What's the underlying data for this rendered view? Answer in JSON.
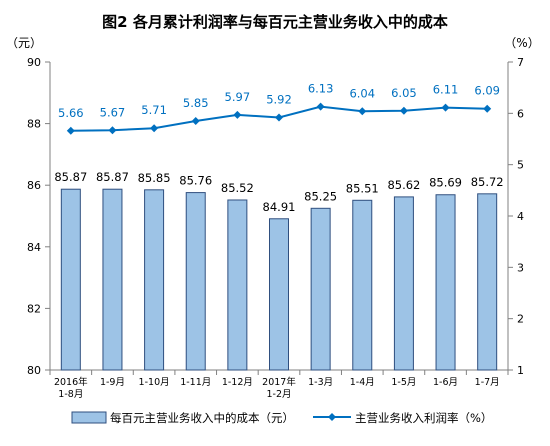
{
  "title": "图2  各月累计利润率与每百元主营业务收入中的成本",
  "left_unit": "（元）",
  "right_unit": "（%）",
  "colors": {
    "bar_fill": "#9DC3E6",
    "bar_stroke": "#2F4F7F",
    "line": "#0070C0",
    "line_label": "#0070C0"
  },
  "chart_data": {
    "type": "bar+line",
    "categories": [
      [
        "2016年",
        "1-8月"
      ],
      [
        "1-9月"
      ],
      [
        "1-10月"
      ],
      [
        "1-11月"
      ],
      [
        "1-12月"
      ],
      [
        "2017年",
        "1-2月"
      ],
      [
        "1-3月"
      ],
      [
        "1-4月"
      ],
      [
        "1-5月"
      ],
      [
        "1-6月"
      ],
      [
        "1-7月"
      ]
    ],
    "series": [
      {
        "name": "每百元主营业务收入中的成本（元）",
        "type": "bar",
        "axis": "left",
        "values": [
          85.87,
          85.87,
          85.85,
          85.76,
          85.52,
          84.91,
          85.25,
          85.51,
          85.62,
          85.69,
          85.72
        ],
        "labels": [
          "85.87",
          "85.87",
          "85.85",
          "85.76",
          "85.52",
          "84.91",
          "85.25",
          "85.51",
          "85.62",
          "85.69",
          "85.72"
        ]
      },
      {
        "name": "主营业务收入利润率（%）",
        "type": "line",
        "axis": "right",
        "values": [
          5.66,
          5.67,
          5.71,
          5.85,
          5.97,
          5.92,
          6.13,
          6.04,
          6.05,
          6.11,
          6.09
        ],
        "labels": [
          "5.66",
          "5.67",
          "5.71",
          "5.85",
          "5.97",
          "5.92",
          "6.13",
          "6.04",
          "6.05",
          "6.11",
          "6.09"
        ]
      }
    ],
    "ylim_left": [
      80,
      90
    ],
    "yticks_left": [
      "80",
      "82",
      "84",
      "86",
      "88",
      "90"
    ],
    "ylim_right": [
      1,
      7
    ],
    "yticks_right": [
      "1",
      "2",
      "3",
      "4",
      "5",
      "6",
      "7"
    ],
    "grid": false,
    "legend_position": "bottom"
  }
}
